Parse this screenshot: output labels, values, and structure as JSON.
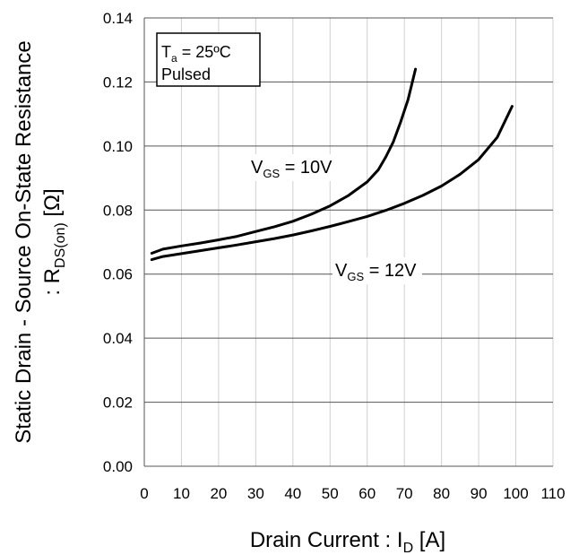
{
  "chart_data": {
    "type": "line",
    "xlabel": {
      "main": "Drain Current : I",
      "sub": "D",
      "unit": " [A]"
    },
    "ylabel": {
      "line1": "Static Drain - Source On-State Resistance",
      "line2_main": ": R",
      "line2_sub": "DS(on)",
      "line2_unit": " [Ω]"
    },
    "xlim": [
      0,
      110
    ],
    "ylim": [
      0,
      0.14
    ],
    "x_ticks": [
      "0",
      "10",
      "20",
      "30",
      "40",
      "50",
      "60",
      "70",
      "80",
      "90",
      "100",
      "110"
    ],
    "y_ticks": [
      "0.00",
      "0.02",
      "0.04",
      "0.06",
      "0.08",
      "0.10",
      "0.12",
      "0.14"
    ],
    "x_tick_values": [
      0,
      10,
      20,
      30,
      40,
      50,
      60,
      70,
      80,
      90,
      100,
      110
    ],
    "y_tick_values": [
      0,
      0.02,
      0.04,
      0.06,
      0.08,
      0.1,
      0.12,
      0.14
    ],
    "grid": {
      "vertical": true,
      "horizontal": true
    },
    "conditions": {
      "line1_main": "T",
      "line1_sub": "a",
      "line1_rest": " = 25ºC",
      "line2": "Pulsed"
    },
    "series": [
      {
        "label_main": "V",
        "label_sub": "GS",
        "label_rest": " = 10V",
        "x": [
          2,
          5,
          10,
          15,
          20,
          25,
          30,
          35,
          40,
          45,
          50,
          55,
          60,
          63,
          65,
          67,
          69,
          71,
          73
        ],
        "y": [
          0.0665,
          0.0678,
          0.0688,
          0.0697,
          0.0707,
          0.0718,
          0.0733,
          0.0748,
          0.0765,
          0.0787,
          0.0813,
          0.0846,
          0.0888,
          0.0926,
          0.0966,
          0.1012,
          0.1075,
          0.1145,
          0.124
        ]
      },
      {
        "label_main": "V",
        "label_sub": "GS",
        "label_rest": " = 12V",
        "x": [
          2,
          5,
          10,
          15,
          20,
          25,
          30,
          35,
          40,
          45,
          50,
          55,
          60,
          65,
          70,
          75,
          80,
          85,
          90,
          95,
          99
        ],
        "y": [
          0.0645,
          0.0655,
          0.0664,
          0.0673,
          0.0682,
          0.0691,
          0.0701,
          0.0711,
          0.0722,
          0.0735,
          0.0749,
          0.0764,
          0.078,
          0.0799,
          0.0821,
          0.0846,
          0.0875,
          0.0912,
          0.0958,
          0.1027,
          0.1124
        ]
      }
    ]
  }
}
